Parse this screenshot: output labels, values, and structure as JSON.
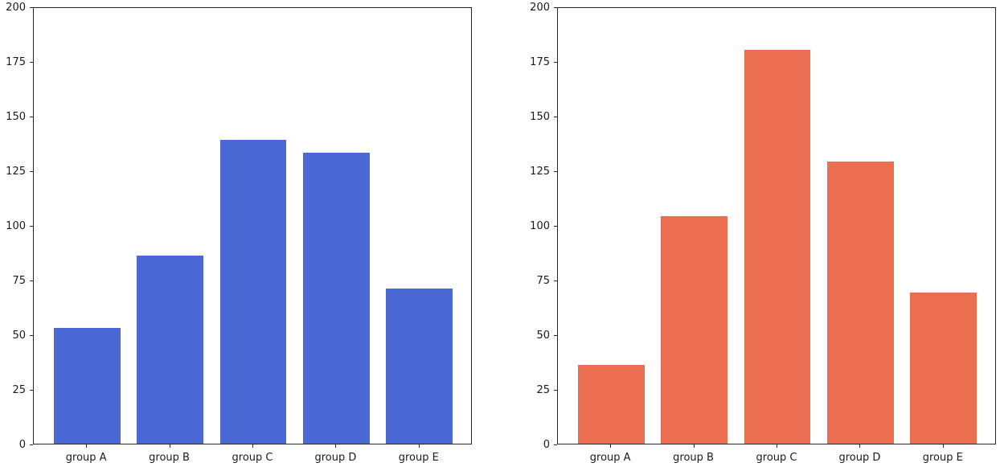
{
  "figure": {
    "background": "#ffffff",
    "text_color": "#1a1a1a",
    "spine_color": "#262626"
  },
  "chart_data": [
    {
      "type": "bar",
      "title": "",
      "xlabel": "",
      "ylabel": "",
      "categories": [
        "group A",
        "group B",
        "group C",
        "group D",
        "group E"
      ],
      "values": [
        53,
        86,
        139,
        133,
        71
      ],
      "bar_color": "#4A69D4",
      "ylim": [
        0,
        200
      ],
      "yticks": [
        0,
        25,
        50,
        75,
        100,
        125,
        150,
        175,
        200
      ],
      "grid": false,
      "legend": false
    },
    {
      "type": "bar",
      "title": "",
      "xlabel": "",
      "ylabel": "",
      "categories": [
        "group A",
        "group B",
        "group C",
        "group D",
        "group E"
      ],
      "values": [
        36,
        104,
        180,
        129,
        69
      ],
      "bar_color": "#EC6E51",
      "ylim": [
        0,
        200
      ],
      "yticks": [
        0,
        25,
        50,
        75,
        100,
        125,
        150,
        175,
        200
      ],
      "grid": false,
      "legend": false
    }
  ]
}
